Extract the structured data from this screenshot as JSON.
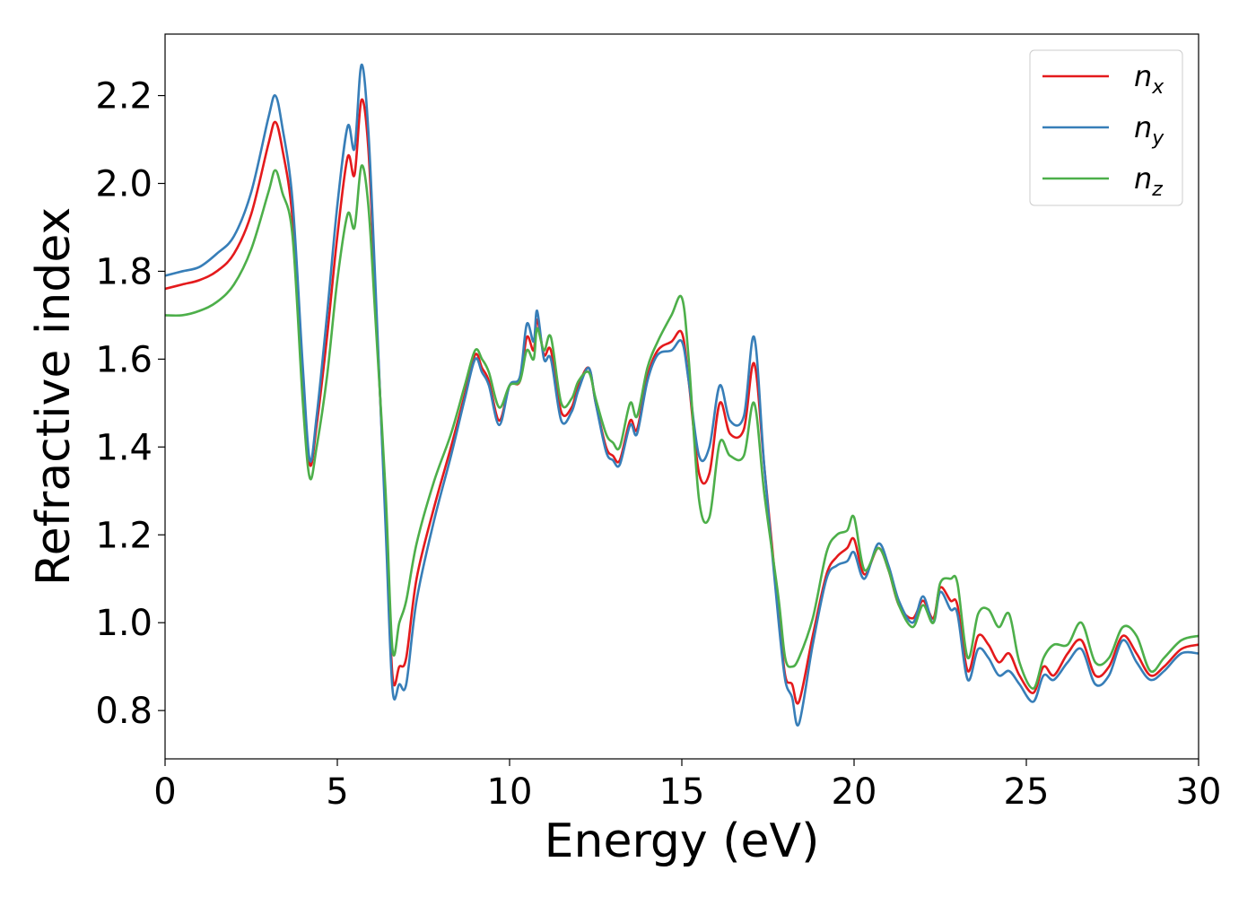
{
  "chart_data": {
    "type": "line",
    "title": "",
    "xlabel": "Energy (eV)",
    "ylabel": "Refractive index",
    "xlim": [
      0,
      30
    ],
    "ylim": [
      0.69,
      2.34
    ],
    "x_ticks": [
      "0",
      "5",
      "10",
      "15",
      "20",
      "25",
      "30"
    ],
    "y_ticks": [
      "0.8",
      "1.0",
      "1.2",
      "1.4",
      "1.6",
      "1.8",
      "2.0",
      "2.2"
    ],
    "grid": false,
    "legend_position": "top-right",
    "series": [
      {
        "name": "n",
        "subscript": "x",
        "color": "#e41a1c",
        "points": [
          [
            0,
            1.76
          ],
          [
            0.5,
            1.77
          ],
          [
            1.0,
            1.78
          ],
          [
            1.5,
            1.8
          ],
          [
            2.0,
            1.84
          ],
          [
            2.5,
            1.93
          ],
          [
            3.0,
            2.09
          ],
          [
            3.2,
            2.14
          ],
          [
            3.4,
            2.08
          ],
          [
            3.7,
            1.92
          ],
          [
            4.0,
            1.55
          ],
          [
            4.2,
            1.36
          ],
          [
            4.4,
            1.45
          ],
          [
            4.7,
            1.65
          ],
          [
            5.0,
            1.88
          ],
          [
            5.3,
            2.06
          ],
          [
            5.5,
            2.02
          ],
          [
            5.7,
            2.19
          ],
          [
            5.9,
            2.08
          ],
          [
            6.1,
            1.75
          ],
          [
            6.4,
            1.25
          ],
          [
            6.6,
            0.88
          ],
          [
            6.8,
            0.9
          ],
          [
            7.0,
            0.92
          ],
          [
            7.3,
            1.1
          ],
          [
            7.8,
            1.26
          ],
          [
            8.3,
            1.4
          ],
          [
            8.7,
            1.52
          ],
          [
            9.0,
            1.61
          ],
          [
            9.2,
            1.58
          ],
          [
            9.4,
            1.55
          ],
          [
            9.7,
            1.46
          ],
          [
            10.0,
            1.54
          ],
          [
            10.3,
            1.55
          ],
          [
            10.5,
            1.65
          ],
          [
            10.7,
            1.62
          ],
          [
            10.8,
            1.69
          ],
          [
            11.0,
            1.61
          ],
          [
            11.2,
            1.62
          ],
          [
            11.5,
            1.48
          ],
          [
            11.8,
            1.49
          ],
          [
            12.0,
            1.54
          ],
          [
            12.3,
            1.58
          ],
          [
            12.5,
            1.5
          ],
          [
            12.8,
            1.4
          ],
          [
            13.0,
            1.38
          ],
          [
            13.2,
            1.37
          ],
          [
            13.5,
            1.46
          ],
          [
            13.7,
            1.44
          ],
          [
            14.0,
            1.56
          ],
          [
            14.3,
            1.62
          ],
          [
            14.7,
            1.64
          ],
          [
            15.0,
            1.66
          ],
          [
            15.2,
            1.55
          ],
          [
            15.5,
            1.34
          ],
          [
            15.8,
            1.34
          ],
          [
            16.1,
            1.5
          ],
          [
            16.4,
            1.43
          ],
          [
            16.8,
            1.44
          ],
          [
            17.1,
            1.59
          ],
          [
            17.4,
            1.35
          ],
          [
            17.8,
            1.03
          ],
          [
            18.0,
            0.88
          ],
          [
            18.2,
            0.86
          ],
          [
            18.4,
            0.82
          ],
          [
            18.8,
            0.97
          ],
          [
            19.2,
            1.11
          ],
          [
            19.5,
            1.15
          ],
          [
            19.8,
            1.17
          ],
          [
            20.0,
            1.19
          ],
          [
            20.3,
            1.11
          ],
          [
            20.7,
            1.17
          ],
          [
            21.0,
            1.12
          ],
          [
            21.3,
            1.04
          ],
          [
            21.7,
            1.01
          ],
          [
            22.0,
            1.05
          ],
          [
            22.3,
            1.01
          ],
          [
            22.5,
            1.08
          ],
          [
            22.8,
            1.05
          ],
          [
            23.0,
            1.04
          ],
          [
            23.3,
            0.89
          ],
          [
            23.6,
            0.97
          ],
          [
            23.9,
            0.95
          ],
          [
            24.2,
            0.91
          ],
          [
            24.5,
            0.93
          ],
          [
            24.8,
            0.88
          ],
          [
            25.2,
            0.84
          ],
          [
            25.5,
            0.9
          ],
          [
            25.8,
            0.88
          ],
          [
            26.2,
            0.93
          ],
          [
            26.6,
            0.96
          ],
          [
            27.0,
            0.88
          ],
          [
            27.4,
            0.9
          ],
          [
            27.8,
            0.97
          ],
          [
            28.2,
            0.93
          ],
          [
            28.6,
            0.88
          ],
          [
            29.0,
            0.9
          ],
          [
            29.5,
            0.94
          ],
          [
            30.0,
            0.95
          ]
        ]
      },
      {
        "name": "n",
        "subscript": "y",
        "color": "#377eb8",
        "points": [
          [
            0,
            1.79
          ],
          [
            0.5,
            1.8
          ],
          [
            1.0,
            1.81
          ],
          [
            1.5,
            1.84
          ],
          [
            2.0,
            1.88
          ],
          [
            2.5,
            1.98
          ],
          [
            3.0,
            2.15
          ],
          [
            3.2,
            2.2
          ],
          [
            3.4,
            2.13
          ],
          [
            3.7,
            1.96
          ],
          [
            4.0,
            1.58
          ],
          [
            4.2,
            1.37
          ],
          [
            4.4,
            1.47
          ],
          [
            4.7,
            1.7
          ],
          [
            5.0,
            1.95
          ],
          [
            5.3,
            2.13
          ],
          [
            5.5,
            2.08
          ],
          [
            5.7,
            2.27
          ],
          [
            5.9,
            2.12
          ],
          [
            6.1,
            1.78
          ],
          [
            6.4,
            1.22
          ],
          [
            6.6,
            0.85
          ],
          [
            6.8,
            0.86
          ],
          [
            7.0,
            0.86
          ],
          [
            7.3,
            1.05
          ],
          [
            7.8,
            1.23
          ],
          [
            8.3,
            1.38
          ],
          [
            8.7,
            1.51
          ],
          [
            9.0,
            1.6
          ],
          [
            9.2,
            1.57
          ],
          [
            9.4,
            1.54
          ],
          [
            9.7,
            1.45
          ],
          [
            10.0,
            1.54
          ],
          [
            10.3,
            1.56
          ],
          [
            10.5,
            1.68
          ],
          [
            10.7,
            1.64
          ],
          [
            10.8,
            1.71
          ],
          [
            11.0,
            1.6
          ],
          [
            11.2,
            1.6
          ],
          [
            11.5,
            1.46
          ],
          [
            11.8,
            1.48
          ],
          [
            12.0,
            1.53
          ],
          [
            12.3,
            1.58
          ],
          [
            12.5,
            1.5
          ],
          [
            12.8,
            1.39
          ],
          [
            13.0,
            1.37
          ],
          [
            13.2,
            1.36
          ],
          [
            13.5,
            1.45
          ],
          [
            13.7,
            1.43
          ],
          [
            14.0,
            1.55
          ],
          [
            14.3,
            1.61
          ],
          [
            14.7,
            1.62
          ],
          [
            15.0,
            1.64
          ],
          [
            15.2,
            1.55
          ],
          [
            15.5,
            1.38
          ],
          [
            15.8,
            1.4
          ],
          [
            16.1,
            1.54
          ],
          [
            16.4,
            1.46
          ],
          [
            16.8,
            1.47
          ],
          [
            17.1,
            1.65
          ],
          [
            17.4,
            1.35
          ],
          [
            17.8,
            1.01
          ],
          [
            18.0,
            0.87
          ],
          [
            18.2,
            0.83
          ],
          [
            18.4,
            0.77
          ],
          [
            18.8,
            0.95
          ],
          [
            19.2,
            1.1
          ],
          [
            19.5,
            1.13
          ],
          [
            19.8,
            1.14
          ],
          [
            20.0,
            1.16
          ],
          [
            20.3,
            1.1
          ],
          [
            20.7,
            1.18
          ],
          [
            21.0,
            1.13
          ],
          [
            21.3,
            1.05
          ],
          [
            21.7,
            1.0
          ],
          [
            22.0,
            1.06
          ],
          [
            22.3,
            1.0
          ],
          [
            22.5,
            1.07
          ],
          [
            22.8,
            1.03
          ],
          [
            23.0,
            1.02
          ],
          [
            23.3,
            0.87
          ],
          [
            23.6,
            0.94
          ],
          [
            23.9,
            0.92
          ],
          [
            24.2,
            0.88
          ],
          [
            24.5,
            0.89
          ],
          [
            24.8,
            0.86
          ],
          [
            25.2,
            0.82
          ],
          [
            25.5,
            0.88
          ],
          [
            25.8,
            0.87
          ],
          [
            26.2,
            0.91
          ],
          [
            26.6,
            0.94
          ],
          [
            27.0,
            0.86
          ],
          [
            27.4,
            0.88
          ],
          [
            27.8,
            0.96
          ],
          [
            28.2,
            0.91
          ],
          [
            28.6,
            0.87
          ],
          [
            29.0,
            0.89
          ],
          [
            29.5,
            0.93
          ],
          [
            30.0,
            0.93
          ]
        ]
      },
      {
        "name": "n",
        "subscript": "z",
        "color": "#4daf4a",
        "points": [
          [
            0,
            1.7
          ],
          [
            0.5,
            1.7
          ],
          [
            1.0,
            1.71
          ],
          [
            1.5,
            1.73
          ],
          [
            2.0,
            1.77
          ],
          [
            2.5,
            1.85
          ],
          [
            3.0,
            1.98
          ],
          [
            3.2,
            2.03
          ],
          [
            3.4,
            1.98
          ],
          [
            3.7,
            1.88
          ],
          [
            4.0,
            1.5
          ],
          [
            4.2,
            1.33
          ],
          [
            4.4,
            1.4
          ],
          [
            4.7,
            1.56
          ],
          [
            5.0,
            1.78
          ],
          [
            5.3,
            1.93
          ],
          [
            5.5,
            1.9
          ],
          [
            5.7,
            2.04
          ],
          [
            5.9,
            1.95
          ],
          [
            6.1,
            1.7
          ],
          [
            6.4,
            1.3
          ],
          [
            6.6,
            0.94
          ],
          [
            6.8,
            1.0
          ],
          [
            7.0,
            1.05
          ],
          [
            7.3,
            1.18
          ],
          [
            7.8,
            1.32
          ],
          [
            8.3,
            1.43
          ],
          [
            8.7,
            1.54
          ],
          [
            9.0,
            1.62
          ],
          [
            9.2,
            1.6
          ],
          [
            9.4,
            1.57
          ],
          [
            9.7,
            1.49
          ],
          [
            10.0,
            1.54
          ],
          [
            10.3,
            1.55
          ],
          [
            10.5,
            1.62
          ],
          [
            10.7,
            1.6
          ],
          [
            10.8,
            1.67
          ],
          [
            11.0,
            1.62
          ],
          [
            11.2,
            1.65
          ],
          [
            11.5,
            1.5
          ],
          [
            11.8,
            1.51
          ],
          [
            12.0,
            1.55
          ],
          [
            12.3,
            1.57
          ],
          [
            12.5,
            1.51
          ],
          [
            12.8,
            1.43
          ],
          [
            13.0,
            1.41
          ],
          [
            13.2,
            1.4
          ],
          [
            13.5,
            1.5
          ],
          [
            13.7,
            1.47
          ],
          [
            14.0,
            1.58
          ],
          [
            14.3,
            1.64
          ],
          [
            14.7,
            1.7
          ],
          [
            15.0,
            1.74
          ],
          [
            15.2,
            1.6
          ],
          [
            15.5,
            1.28
          ],
          [
            15.8,
            1.24
          ],
          [
            16.1,
            1.41
          ],
          [
            16.4,
            1.38
          ],
          [
            16.8,
            1.38
          ],
          [
            17.1,
            1.5
          ],
          [
            17.4,
            1.29
          ],
          [
            17.8,
            1.06
          ],
          [
            18.0,
            0.92
          ],
          [
            18.2,
            0.9
          ],
          [
            18.4,
            0.92
          ],
          [
            18.8,
            1.01
          ],
          [
            19.2,
            1.16
          ],
          [
            19.5,
            1.2
          ],
          [
            19.8,
            1.21
          ],
          [
            20.0,
            1.24
          ],
          [
            20.3,
            1.12
          ],
          [
            20.7,
            1.17
          ],
          [
            21.0,
            1.12
          ],
          [
            21.3,
            1.04
          ],
          [
            21.7,
            0.99
          ],
          [
            22.0,
            1.04
          ],
          [
            22.3,
            1.0
          ],
          [
            22.5,
            1.09
          ],
          [
            22.8,
            1.1
          ],
          [
            23.0,
            1.09
          ],
          [
            23.3,
            0.92
          ],
          [
            23.6,
            1.02
          ],
          [
            23.9,
            1.03
          ],
          [
            24.2,
            0.99
          ],
          [
            24.5,
            1.02
          ],
          [
            24.8,
            0.91
          ],
          [
            25.2,
            0.85
          ],
          [
            25.5,
            0.92
          ],
          [
            25.8,
            0.95
          ],
          [
            26.2,
            0.95
          ],
          [
            26.6,
            1.0
          ],
          [
            27.0,
            0.91
          ],
          [
            27.4,
            0.92
          ],
          [
            27.8,
            0.99
          ],
          [
            28.2,
            0.97
          ],
          [
            28.6,
            0.89
          ],
          [
            29.0,
            0.92
          ],
          [
            29.5,
            0.96
          ],
          [
            30.0,
            0.97
          ]
        ]
      }
    ]
  }
}
